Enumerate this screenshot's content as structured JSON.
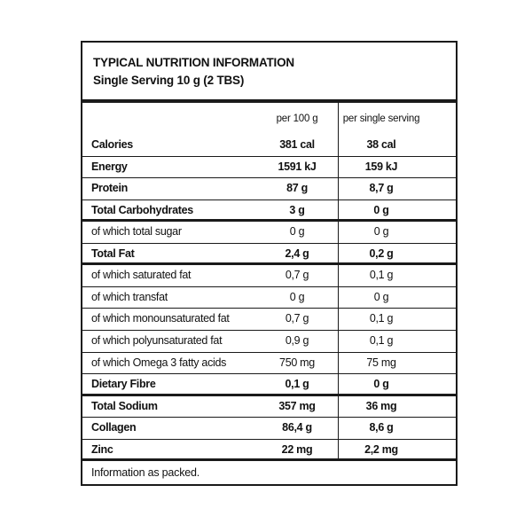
{
  "panel": {
    "title": "TYPICAL NUTRITION INFORMATION",
    "subtitle": "Single Serving 10 g (2 TBS)",
    "col_per_100g": "per 100 g",
    "col_per_serving": "per single serving",
    "rows": [
      {
        "label": "Calories",
        "per100": "381 cal",
        "serving": "38 cal",
        "bold": true
      },
      {
        "label": "Energy",
        "per100": "1591 kJ",
        "serving": "159 kJ",
        "bold": true
      },
      {
        "label": "Protein",
        "per100": "87 g",
        "serving": "8,7 g",
        "bold": true
      },
      {
        "label": "Total Carbohydrates",
        "per100": "3 g",
        "serving": "0 g",
        "bold": true
      },
      {
        "label": "of which total sugar",
        "per100": "0 g",
        "serving": "0 g",
        "bold": false
      },
      {
        "label": "Total Fat",
        "per100": "2,4 g",
        "serving": "0,2 g",
        "bold": true
      },
      {
        "label": "of which saturated fat",
        "per100": "0,7 g",
        "serving": "0,1 g",
        "bold": false
      },
      {
        "label": "of which transfat",
        "per100": "0 g",
        "serving": "0 g",
        "bold": false
      },
      {
        "label": "of which monounsaturated fat",
        "per100": "0,7 g",
        "serving": "0,1 g",
        "bold": false
      },
      {
        "label": "of which polyunsaturated fat",
        "per100": "0,9 g",
        "serving": "0,1 g",
        "bold": false
      },
      {
        "label": "of which Omega 3 fatty acids",
        "per100": "750 mg",
        "serving": "75 mg",
        "bold": false
      },
      {
        "label": "Dietary Fibre",
        "per100": "0,1 g",
        "serving": "0 g",
        "bold": true
      },
      {
        "label": "Total Sodium",
        "per100": "357 mg",
        "serving": "36 mg",
        "bold": true
      },
      {
        "label": "Collagen",
        "per100": "86,4 g",
        "serving": "8,6 g",
        "bold": true
      },
      {
        "label": "Zinc",
        "per100": "22 mg",
        "serving": "2,2 mg",
        "bold": true
      }
    ],
    "footer": "Information as packed."
  }
}
